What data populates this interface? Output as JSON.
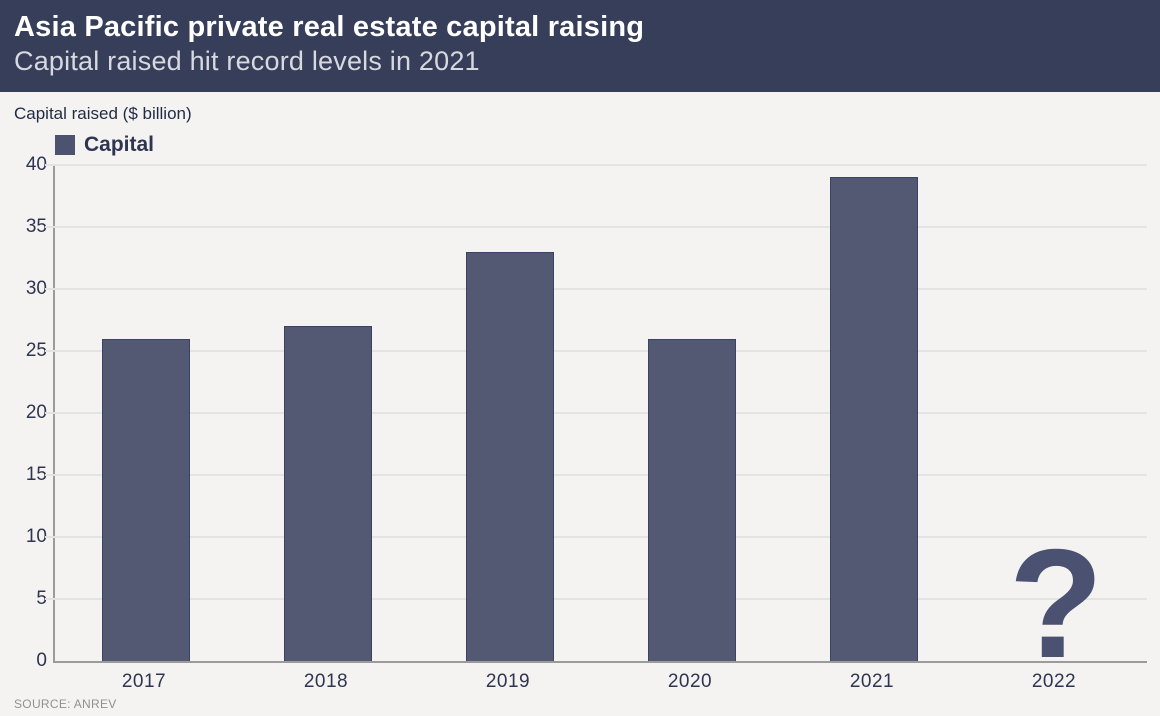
{
  "chart_data": {
    "type": "bar",
    "title": "Asia Pacific private real estate capital raising",
    "subtitle": "Capital raised hit record levels in 2021",
    "ylabel": "Capital raised ($ billion)",
    "xlabel": "",
    "categories": [
      "2017",
      "2018",
      "2019",
      "2020",
      "2021",
      "2022"
    ],
    "series": [
      {
        "name": "Capital",
        "values": [
          26,
          27,
          33,
          26,
          39,
          null
        ]
      }
    ],
    "missing_value_marker": "?",
    "missing_value_category": "2022",
    "ylim": [
      0,
      40
    ],
    "yticks": [
      0,
      5,
      10,
      15,
      20,
      25,
      30,
      35,
      40
    ],
    "grid": "horizontal",
    "legend_position": "top-left",
    "source": "SOURCE: ANREV",
    "colors": {
      "header_background": "#373e5a",
      "bar": "#545973",
      "bar_border": "#3c4261",
      "legend_swatch": "#4c5270",
      "missing_marker": "#4b5170"
    }
  }
}
